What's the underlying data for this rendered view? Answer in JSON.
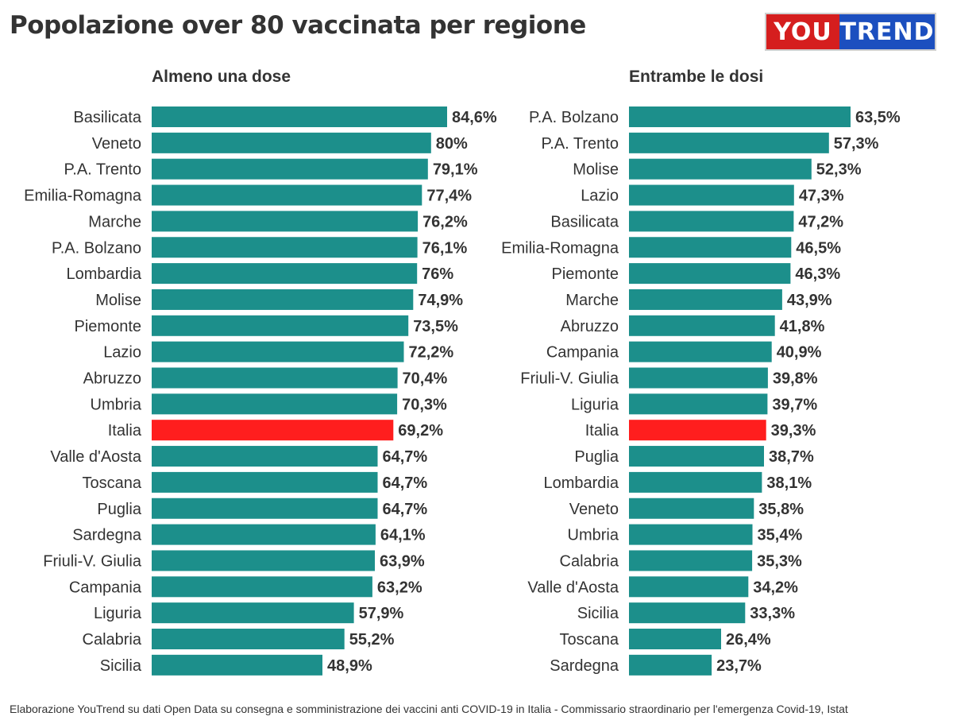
{
  "title": "Popolazione over 80 vaccinata per regione",
  "logo": {
    "part1": "YOU",
    "part2": "TREND"
  },
  "colors": {
    "bar": "#1c8f8b",
    "highlight": "#ff1e1e",
    "text": "#333333"
  },
  "source": "Elaborazione YouTrend su dati Open Data su consegna e somministrazione dei vaccini anti COVID-19 in Italia - Commissario straordinario per l'emergenza Covid-19, Istat",
  "chart_data": [
    {
      "type": "bar",
      "orientation": "horizontal",
      "title": "Almeno una dose",
      "highlight": "Italia",
      "categories": [
        "Basilicata",
        "Veneto",
        "P.A. Trento",
        "Emilia-Romagna",
        "Marche",
        "P.A. Bolzano",
        "Lombardia",
        "Molise",
        "Piemonte",
        "Lazio",
        "Abruzzo",
        "Umbria",
        "Italia",
        "Valle d'Aosta",
        "Toscana",
        "Puglia",
        "Sardegna",
        "Friuli-V. Giulia",
        "Campania",
        "Liguria",
        "Calabria",
        "Sicilia"
      ],
      "values": [
        84.6,
        80,
        79.1,
        77.4,
        76.2,
        76.1,
        76,
        74.9,
        73.5,
        72.2,
        70.4,
        70.3,
        69.2,
        64.7,
        64.7,
        64.7,
        64.1,
        63.9,
        63.2,
        57.9,
        55.2,
        48.9
      ],
      "labels": [
        "84,6%",
        "80%",
        "79,1%",
        "77,4%",
        "76,2%",
        "76,1%",
        "76%",
        "74,9%",
        "73,5%",
        "72,2%",
        "70,4%",
        "70,3%",
        "69,2%",
        "64,7%",
        "64,7%",
        "64,7%",
        "64,1%",
        "63,9%",
        "63,2%",
        "57,9%",
        "55,2%",
        "48,9%"
      ]
    },
    {
      "type": "bar",
      "orientation": "horizontal",
      "title": "Entrambe le dosi",
      "highlight": "Italia",
      "categories": [
        "P.A. Bolzano",
        "P.A. Trento",
        "Molise",
        "Lazio",
        "Basilicata",
        "Emilia-Romagna",
        "Piemonte",
        "Marche",
        "Abruzzo",
        "Campania",
        "Friuli-V. Giulia",
        "Liguria",
        "Italia",
        "Puglia",
        "Lombardia",
        "Veneto",
        "Umbria",
        "Calabria",
        "Valle d'Aosta",
        "Sicilia",
        "Toscana",
        "Sardegna"
      ],
      "values": [
        63.5,
        57.3,
        52.3,
        47.3,
        47.2,
        46.5,
        46.3,
        43.9,
        41.8,
        40.9,
        39.8,
        39.7,
        39.3,
        38.7,
        38.1,
        35.8,
        35.4,
        35.3,
        34.2,
        33.3,
        26.4,
        23.7
      ],
      "labels": [
        "63,5%",
        "57,3%",
        "52,3%",
        "47,3%",
        "47,2%",
        "46,5%",
        "46,3%",
        "43,9%",
        "41,8%",
        "40,9%",
        "39,8%",
        "39,7%",
        "39,3%",
        "38,7%",
        "38,1%",
        "35,8%",
        "35,4%",
        "35,3%",
        "34,2%",
        "33,3%",
        "26,4%",
        "23,7%"
      ]
    }
  ]
}
